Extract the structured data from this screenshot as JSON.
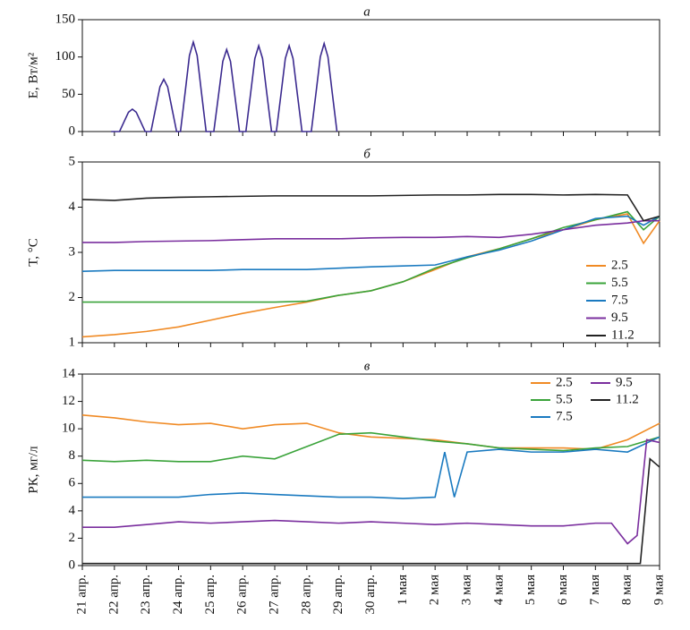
{
  "chart_data": [
    {
      "type": "line",
      "title": "а",
      "y_label": "E, Вт/м²",
      "color": "#3b2a8f",
      "xlim": [
        0,
        18
      ],
      "ylim": [
        0,
        150
      ],
      "yticks": [
        0,
        50,
        100,
        150
      ],
      "x": [
        0.9,
        1.16,
        1.31,
        1.44,
        1.56,
        1.68,
        1.81,
        1.96,
        2.14,
        2.29,
        2.42,
        2.54,
        2.66,
        2.79,
        2.94,
        3.06,
        3.21,
        3.34,
        3.46,
        3.58,
        3.71,
        3.86,
        4.1,
        4.25,
        4.38,
        4.5,
        4.62,
        4.75,
        4.9,
        5.1,
        5.25,
        5.38,
        5.5,
        5.62,
        5.75,
        5.9,
        6.05,
        6.2,
        6.33,
        6.45,
        6.57,
        6.7,
        6.85,
        7.14,
        7.29,
        7.42,
        7.54,
        7.66,
        7.79,
        7.94
      ],
      "values": [
        0,
        0,
        14,
        26,
        30,
        26,
        14,
        0,
        0,
        32,
        60,
        70,
        60,
        32,
        0,
        0,
        54,
        102,
        120,
        102,
        54,
        0,
        0,
        50,
        94,
        110,
        94,
        50,
        0,
        0,
        52,
        98,
        115,
        98,
        52,
        0,
        0,
        52,
        98,
        115,
        98,
        52,
        0,
        0,
        53,
        100,
        118,
        100,
        53,
        0
      ]
    },
    {
      "type": "line",
      "title": "б",
      "y_label": "T, °C",
      "legend": "lower right",
      "xlim": [
        0,
        18
      ],
      "ylim": [
        1,
        5
      ],
      "yticks": [
        1,
        2,
        3,
        4,
        5
      ],
      "series": [
        {
          "name": "2.5",
          "color": "#f08a24",
          "x": [
            0,
            1,
            2,
            3,
            4,
            5,
            6,
            7,
            8,
            9,
            10,
            11,
            12,
            13,
            14,
            15,
            16,
            17,
            17.5,
            18
          ],
          "values": [
            1.13,
            1.18,
            1.25,
            1.35,
            1.5,
            1.65,
            1.78,
            1.9,
            2.05,
            2.15,
            2.35,
            2.62,
            2.9,
            3.08,
            3.3,
            3.5,
            3.72,
            3.85,
            3.2,
            3.7
          ]
        },
        {
          "name": "5.5",
          "color": "#3aa33a",
          "x": [
            0,
            1,
            2,
            3,
            4,
            5,
            6,
            7,
            8,
            9,
            10,
            11,
            12,
            13,
            14,
            15,
            16,
            17,
            17.5,
            18
          ],
          "values": [
            1.9,
            1.9,
            1.9,
            1.9,
            1.9,
            1.9,
            1.9,
            1.92,
            2.05,
            2.15,
            2.35,
            2.65,
            2.88,
            3.08,
            3.3,
            3.55,
            3.72,
            3.9,
            3.5,
            3.8
          ]
        },
        {
          "name": "7.5",
          "color": "#1a7ac0",
          "x": [
            0,
            1,
            2,
            3,
            4,
            5,
            6,
            7,
            8,
            9,
            10,
            11,
            12,
            13,
            14,
            15,
            16,
            17,
            17.5,
            18
          ],
          "values": [
            2.58,
            2.6,
            2.6,
            2.6,
            2.6,
            2.62,
            2.62,
            2.62,
            2.65,
            2.68,
            2.7,
            2.72,
            2.9,
            3.05,
            3.25,
            3.5,
            3.75,
            3.8,
            3.6,
            3.8
          ]
        },
        {
          "name": "9.5",
          "color": "#7a2e9e",
          "x": [
            0,
            1,
            2,
            3,
            4,
            5,
            6,
            7,
            8,
            9,
            10,
            11,
            12,
            13,
            14,
            15,
            16,
            17,
            17.5,
            18
          ],
          "values": [
            3.22,
            3.22,
            3.24,
            3.25,
            3.26,
            3.28,
            3.3,
            3.3,
            3.3,
            3.32,
            3.33,
            3.33,
            3.35,
            3.33,
            3.4,
            3.5,
            3.6,
            3.65,
            3.7,
            3.7
          ]
        },
        {
          "name": "11.2",
          "color": "#222222",
          "x": [
            0,
            1,
            2,
            3,
            4,
            5,
            6,
            7,
            8,
            9,
            10,
            11,
            12,
            13,
            14,
            15,
            16,
            17,
            17.5,
            18
          ],
          "values": [
            4.17,
            4.15,
            4.2,
            4.22,
            4.23,
            4.24,
            4.25,
            4.25,
            4.25,
            4.25,
            4.26,
            4.27,
            4.27,
            4.28,
            4.28,
            4.27,
            4.28,
            4.27,
            3.7,
            3.8
          ]
        }
      ]
    },
    {
      "type": "line",
      "title": "в",
      "y_label": "РК, мг/л",
      "legend": "upper right",
      "xlim": [
        0,
        18
      ],
      "ylim": [
        0,
        14
      ],
      "yticks": [
        0,
        2,
        4,
        6,
        8,
        10,
        12,
        14
      ],
      "xticks": [
        {
          "value": 0,
          "label": "21 апр."
        },
        {
          "value": 1,
          "label": "22 апр."
        },
        {
          "value": 2,
          "label": "23 апр."
        },
        {
          "value": 3,
          "label": "24 апр."
        },
        {
          "value": 4,
          "label": "25 апр."
        },
        {
          "value": 5,
          "label": "26 апр."
        },
        {
          "value": 6,
          "label": "27 апр."
        },
        {
          "value": 7,
          "label": "28 апр."
        },
        {
          "value": 8,
          "label": "29 апр."
        },
        {
          "value": 9,
          "label": "30 апр."
        },
        {
          "value": 10,
          "label": "1 мая"
        },
        {
          "value": 11,
          "label": "2 мая"
        },
        {
          "value": 12,
          "label": "3 мая"
        },
        {
          "value": 13,
          "label": "4 мая"
        },
        {
          "value": 14,
          "label": "5 мая"
        },
        {
          "value": 15,
          "label": "6 мая"
        },
        {
          "value": 16,
          "label": "7 мая"
        },
        {
          "value": 17,
          "label": "8 мая"
        },
        {
          "value": 18,
          "label": "9 мая"
        }
      ],
      "series": [
        {
          "name": "2.5",
          "color": "#f08a24",
          "x": [
            0,
            1,
            2,
            3,
            4,
            5,
            6,
            7,
            8,
            9,
            10,
            11,
            12,
            13,
            14,
            15,
            16,
            17,
            18
          ],
          "values": [
            11,
            10.8,
            10.5,
            10.3,
            10.4,
            10,
            10.3,
            10.4,
            9.7,
            9.4,
            9.3,
            9.2,
            8.9,
            8.6,
            8.6,
            8.6,
            8.5,
            9.2,
            10.4
          ]
        },
        {
          "name": "5.5",
          "color": "#3aa33a",
          "x": [
            0,
            1,
            2,
            3,
            4,
            5,
            6,
            7,
            8,
            9,
            10,
            11,
            12,
            13,
            14,
            15,
            16,
            17,
            18
          ],
          "values": [
            7.7,
            7.6,
            7.7,
            7.6,
            7.6,
            8,
            7.8,
            8.7,
            9.6,
            9.7,
            9.4,
            9.1,
            8.9,
            8.6,
            8.5,
            8.4,
            8.6,
            8.7,
            9.4
          ]
        },
        {
          "name": "7.5",
          "color": "#1a7ac0",
          "x": [
            0,
            1,
            2,
            3,
            4,
            5,
            6,
            7,
            8,
            9,
            10,
            11,
            11.3,
            11.6,
            12,
            13,
            14,
            15,
            16,
            17,
            18
          ],
          "values": [
            5,
            5,
            5,
            5,
            5.2,
            5.3,
            5.2,
            5.1,
            5,
            5,
            4.9,
            5,
            8.3,
            5,
            8.3,
            8.5,
            8.3,
            8.3,
            8.5,
            8.3,
            9.4
          ]
        },
        {
          "name": "9.5",
          "color": "#7a2e9e",
          "x": [
            0,
            1,
            2,
            3,
            4,
            5,
            6,
            7,
            8,
            9,
            10,
            11,
            12,
            13,
            14,
            15,
            16,
            16.5,
            17,
            17.3,
            17.6,
            18
          ],
          "values": [
            2.8,
            2.8,
            3,
            3.2,
            3.1,
            3.2,
            3.3,
            3.2,
            3.1,
            3.2,
            3.1,
            3,
            3.1,
            3,
            2.9,
            2.9,
            3.1,
            3.1,
            1.6,
            2.2,
            9.2,
            9
          ]
        },
        {
          "name": "11.2",
          "color": "#222222",
          "x": [
            0,
            17.4,
            17.7,
            18
          ],
          "values": [
            0.15,
            0.15,
            7.8,
            7.2
          ]
        }
      ]
    }
  ]
}
